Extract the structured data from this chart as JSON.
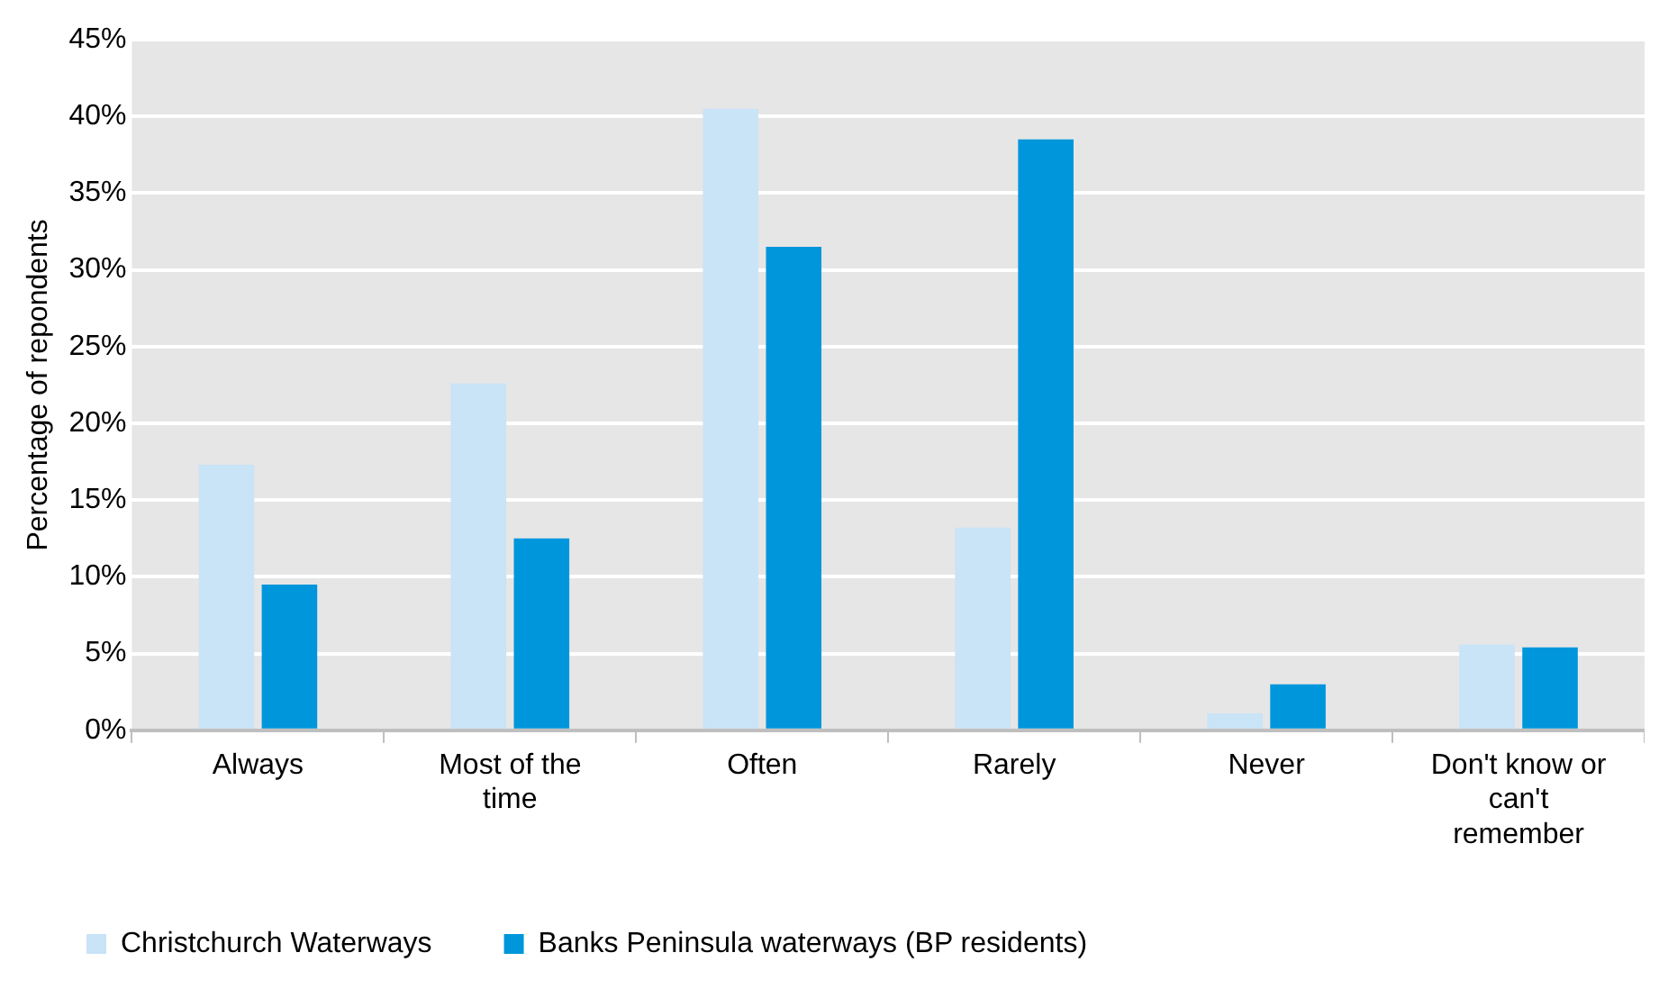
{
  "chart_data": {
    "type": "bar",
    "ylabel": "Percentage of repondents",
    "categories": [
      "Always",
      "Most of the time",
      "Often",
      "Rarely",
      "Never",
      "Don't know or can't remember"
    ],
    "series": [
      {
        "name": "Christchurch Waterways",
        "color": "#c9e3f7",
        "values": [
          17.3,
          22.6,
          40.5,
          13.2,
          1.1,
          5.6
        ]
      },
      {
        "name": "Banks Peninsula waterways (BP residents)",
        "color": "#0096db",
        "values": [
          9.5,
          12.5,
          31.5,
          38.5,
          3.0,
          5.4
        ]
      }
    ],
    "ylim": [
      0,
      45
    ],
    "yticks": [
      {
        "value": 0,
        "label": "0%"
      },
      {
        "value": 5,
        "label": "5%"
      },
      {
        "value": 10,
        "label": "10%"
      },
      {
        "value": 15,
        "label": "15%"
      },
      {
        "value": 20,
        "label": "20%"
      },
      {
        "value": 25,
        "label": "25%"
      },
      {
        "value": 30,
        "label": "30%"
      },
      {
        "value": 35,
        "label": "35%"
      },
      {
        "value": 40,
        "label": "40%"
      },
      {
        "value": 45,
        "label": "45%"
      }
    ],
    "grid": "y",
    "legend": "bottom left"
  }
}
